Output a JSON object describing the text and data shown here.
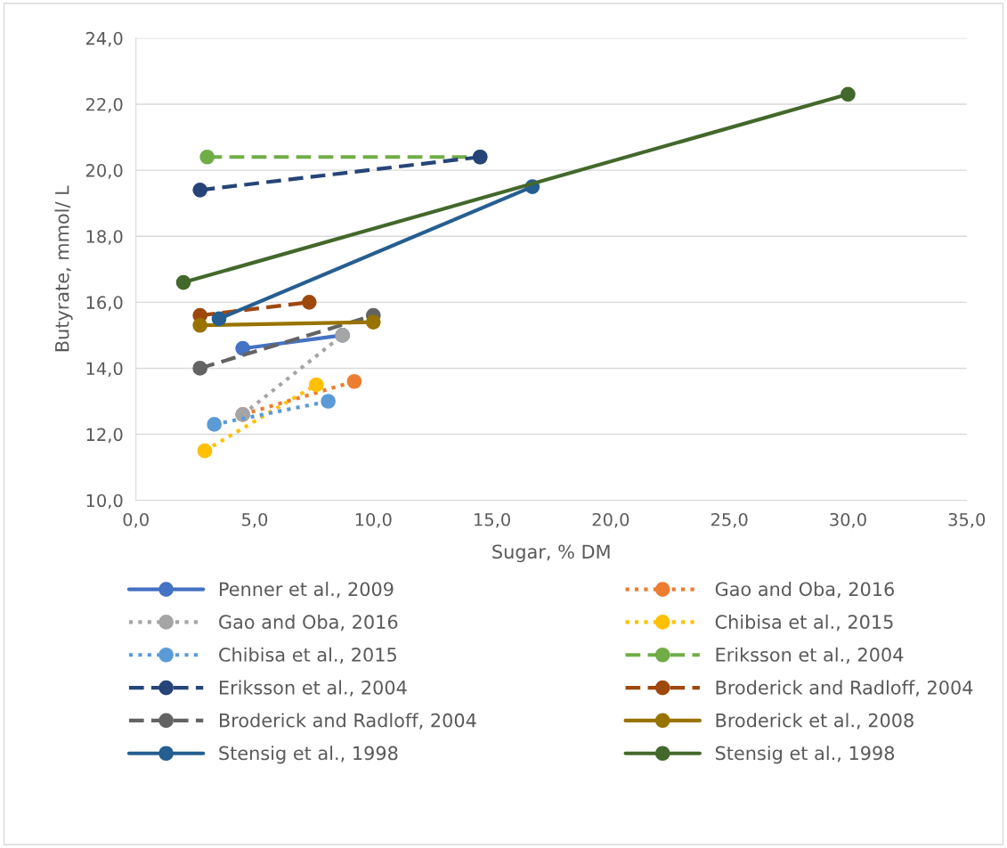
{
  "chart_data": {
    "type": "line",
    "xlabel": "Sugar, % DM",
    "ylabel": "Butyrate, mmol/ L",
    "xlim": [
      0,
      35
    ],
    "xticks": [
      {
        "value": 0,
        "label": "0,0"
      },
      {
        "value": 5,
        "label": "5,0"
      },
      {
        "value": 10,
        "label": "10,0"
      },
      {
        "value": 15,
        "label": "15,0"
      },
      {
        "value": 20,
        "label": "20,0"
      },
      {
        "value": 25,
        "label": "25,0"
      },
      {
        "value": 30,
        "label": "30,0"
      },
      {
        "value": 35,
        "label": "35,0"
      }
    ],
    "ylim": [
      10,
      24
    ],
    "yticks": [
      {
        "value": 10,
        "label": "10,0"
      },
      {
        "value": 12,
        "label": "12,0"
      },
      {
        "value": 14,
        "label": "14,0"
      },
      {
        "value": 16,
        "label": "16,0"
      },
      {
        "value": 18,
        "label": "18,0"
      },
      {
        "value": 20,
        "label": "20,0"
      },
      {
        "value": 22,
        "label": "22,0"
      },
      {
        "value": 24,
        "label": "24,0"
      }
    ],
    "grid": "y",
    "legend": "bottom",
    "marker": "circle",
    "series": [
      {
        "name": "Penner et al., 2009",
        "color": "#4472c4",
        "line_style": "solid",
        "x": [
          4.5,
          8.7
        ],
        "values": [
          14.6,
          15.0
        ]
      },
      {
        "name": "Gao and Oba, 2016",
        "color": "#ed7d31",
        "line_style": "dotted",
        "x": [
          4.5,
          9.2
        ],
        "values": [
          12.6,
          13.6
        ]
      },
      {
        "name": "Gao and Oba, 2016",
        "color": "#a5a5a5",
        "line_style": "dotted",
        "x": [
          4.5,
          8.7
        ],
        "values": [
          12.6,
          15.0
        ]
      },
      {
        "name": "Chibisa et al., 2015",
        "color": "#ffc000",
        "line_style": "dotted",
        "x": [
          2.9,
          7.6
        ],
        "values": [
          11.5,
          13.5
        ]
      },
      {
        "name": "Chibisa et al., 2015",
        "color": "#5b9bd5",
        "line_style": "dotted",
        "x": [
          3.3,
          8.1
        ],
        "values": [
          12.3,
          13.0
        ]
      },
      {
        "name": "Eriksson et al., 2004",
        "color": "#70ad47",
        "line_style": "dashed",
        "x": [
          3.0,
          14.5
        ],
        "values": [
          20.4,
          20.4
        ]
      },
      {
        "name": "Eriksson et al., 2004",
        "color": "#264478",
        "line_style": "dashed",
        "x": [
          2.7,
          14.5
        ],
        "values": [
          19.4,
          20.4
        ]
      },
      {
        "name": "Broderick and Radloff, 2004",
        "color": "#9e480e",
        "line_style": "dashed",
        "x": [
          2.7,
          7.3
        ],
        "values": [
          15.6,
          16.0
        ]
      },
      {
        "name": "Broderick and Radloff, 2004",
        "color": "#636363",
        "line_style": "dashed",
        "x": [
          2.7,
          10.0
        ],
        "values": [
          14.0,
          15.6
        ]
      },
      {
        "name": "Broderick et al., 2008",
        "color": "#997300",
        "line_style": "solid",
        "x": [
          2.7,
          10.0
        ],
        "values": [
          15.3,
          15.4
        ]
      },
      {
        "name": "Stensig et al., 1998",
        "color": "#255e91",
        "line_style": "solid",
        "x": [
          3.5,
          16.7
        ],
        "values": [
          15.5,
          19.5
        ]
      },
      {
        "name": "Stensig et al., 1998",
        "color": "#43682b",
        "line_style": "solid",
        "x": [
          2.0,
          30.0
        ],
        "values": [
          16.6,
          22.3
        ]
      }
    ]
  }
}
